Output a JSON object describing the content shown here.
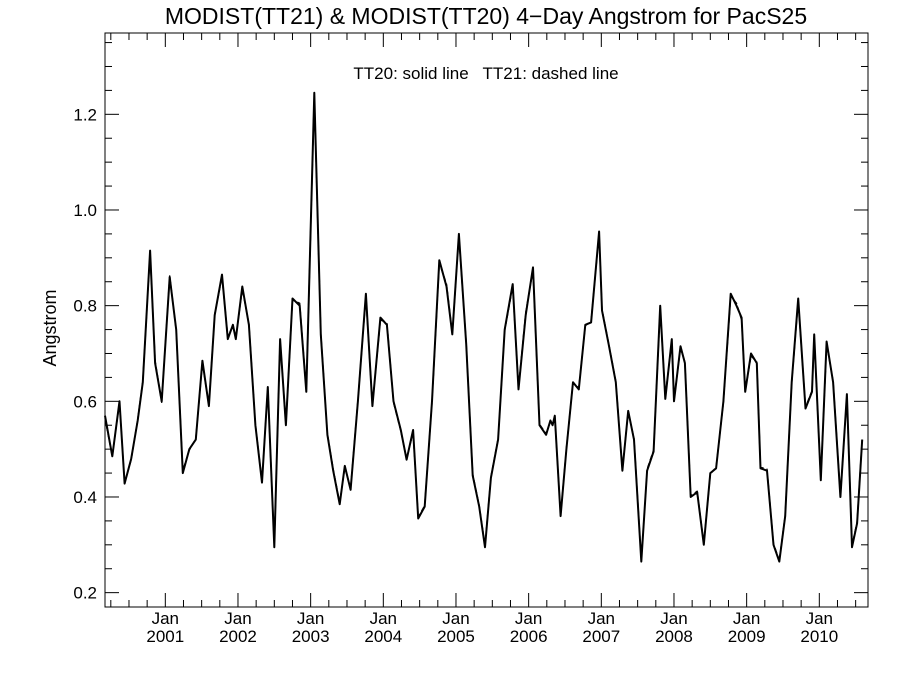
{
  "chart_data": {
    "type": "line",
    "title": "MODIST(TT21) & MODIST(TT20) 4−Day Angstrom for PacS25",
    "ylabel": "Angstrom",
    "xlabel": "",
    "annotation": "TT20: solid line   TT21: dashed line",
    "ylim": [
      0.17,
      1.37
    ],
    "xlim": [
      2000.17,
      2010.67
    ],
    "yticks": [
      0.2,
      0.4,
      0.6,
      0.8,
      1.0,
      1.2
    ],
    "ytick_labels": [
      "0.2",
      "0.4",
      "0.6",
      "0.8",
      "1.0",
      "1.2"
    ],
    "xticks": [
      {
        "x": 2001.0,
        "month": "Jan",
        "year": "2001"
      },
      {
        "x": 2002.0,
        "month": "Jan",
        "year": "2002"
      },
      {
        "x": 2003.0,
        "month": "Jan",
        "year": "2003"
      },
      {
        "x": 2004.0,
        "month": "Jan",
        "year": "2004"
      },
      {
        "x": 2005.0,
        "month": "Jan",
        "year": "2005"
      },
      {
        "x": 2006.0,
        "month": "Jan",
        "year": "2006"
      },
      {
        "x": 2007.0,
        "month": "Jan",
        "year": "2007"
      },
      {
        "x": 2008.0,
        "month": "Jan",
        "year": "2008"
      },
      {
        "x": 2009.0,
        "month": "Jan",
        "year": "2009"
      },
      {
        "x": 2010.0,
        "month": "Jan",
        "year": "2010"
      }
    ],
    "grid": false,
    "series": [
      {
        "name": "TT20",
        "style": "solid",
        "color": "#000000",
        "points": [
          [
            2000.17,
            0.57
          ],
          [
            2000.27,
            0.485
          ],
          [
            2000.37,
            0.6
          ],
          [
            2000.44,
            0.428
          ],
          [
            2000.53,
            0.48
          ],
          [
            2000.62,
            0.56
          ],
          [
            2000.69,
            0.64
          ],
          [
            2000.79,
            0.915
          ],
          [
            2000.86,
            0.68
          ],
          [
            2000.95,
            0.6
          ],
          [
            2001.06,
            0.86
          ],
          [
            2001.15,
            0.75
          ],
          [
            2001.24,
            0.45
          ],
          [
            2001.33,
            0.5
          ],
          [
            2001.42,
            0.52
          ],
          [
            2001.51,
            0.685
          ],
          [
            2001.6,
            0.59
          ],
          [
            2001.68,
            0.78
          ],
          [
            2001.78,
            0.865
          ],
          [
            2001.86,
            0.73
          ],
          [
            2001.93,
            0.76
          ],
          [
            2001.97,
            0.73
          ],
          [
            2002.06,
            0.84
          ],
          [
            2002.15,
            0.76
          ],
          [
            2002.24,
            0.55
          ],
          [
            2002.33,
            0.43
          ],
          [
            2002.41,
            0.63
          ],
          [
            2002.5,
            0.295
          ],
          [
            2002.58,
            0.73
          ],
          [
            2002.66,
            0.55
          ],
          [
            2002.75,
            0.815
          ],
          [
            2002.85,
            0.8
          ],
          [
            2002.94,
            0.62
          ],
          [
            2003.05,
            1.245
          ],
          [
            2003.14,
            0.74
          ],
          [
            2003.23,
            0.53
          ],
          [
            2003.31,
            0.455
          ],
          [
            2003.4,
            0.385
          ],
          [
            2003.47,
            0.465
          ],
          [
            2003.55,
            0.415
          ],
          [
            2003.65,
            0.6
          ],
          [
            2003.76,
            0.825
          ],
          [
            2003.85,
            0.59
          ],
          [
            2003.96,
            0.775
          ],
          [
            2004.05,
            0.76
          ],
          [
            2004.14,
            0.6
          ],
          [
            2004.24,
            0.54
          ],
          [
            2004.32,
            0.478
          ],
          [
            2004.41,
            0.54
          ],
          [
            2004.48,
            0.355
          ],
          [
            2004.57,
            0.38
          ],
          [
            2004.67,
            0.6
          ],
          [
            2004.77,
            0.895
          ],
          [
            2004.87,
            0.84
          ],
          [
            2004.95,
            0.74
          ],
          [
            2005.04,
            0.95
          ],
          [
            2005.14,
            0.72
          ],
          [
            2005.23,
            0.445
          ],
          [
            2005.32,
            0.38
          ],
          [
            2005.4,
            0.295
          ],
          [
            2005.48,
            0.44
          ],
          [
            2005.58,
            0.52
          ],
          [
            2005.67,
            0.75
          ],
          [
            2005.78,
            0.845
          ],
          [
            2005.86,
            0.625
          ],
          [
            2005.96,
            0.78
          ],
          [
            2006.06,
            0.88
          ],
          [
            2006.15,
            0.55
          ],
          [
            2006.24,
            0.53
          ],
          [
            2006.3,
            0.56
          ],
          [
            2006.33,
            0.55
          ],
          [
            2006.36,
            0.57
          ],
          [
            2006.44,
            0.36
          ],
          [
            2006.52,
            0.5
          ],
          [
            2006.61,
            0.64
          ],
          [
            2006.69,
            0.625
          ],
          [
            2006.78,
            0.76
          ],
          [
            2006.86,
            0.765
          ],
          [
            2006.97,
            0.955
          ],
          [
            2007.01,
            0.79
          ],
          [
            2007.1,
            0.72
          ],
          [
            2007.2,
            0.64
          ],
          [
            2007.29,
            0.455
          ],
          [
            2007.37,
            0.58
          ],
          [
            2007.45,
            0.52
          ],
          [
            2007.55,
            0.265
          ],
          [
            2007.63,
            0.455
          ],
          [
            2007.72,
            0.495
          ],
          [
            2007.81,
            0.8
          ],
          [
            2007.88,
            0.605
          ],
          [
            2007.97,
            0.73
          ],
          [
            2008.0,
            0.6
          ],
          [
            2008.09,
            0.715
          ],
          [
            2008.15,
            0.68
          ],
          [
            2008.23,
            0.4
          ],
          [
            2008.32,
            0.41
          ],
          [
            2008.41,
            0.3
          ],
          [
            2008.5,
            0.45
          ],
          [
            2008.58,
            0.46
          ],
          [
            2008.68,
            0.6
          ],
          [
            2008.78,
            0.825
          ],
          [
            2008.86,
            0.8
          ],
          [
            2008.93,
            0.775
          ],
          [
            2008.98,
            0.62
          ],
          [
            2009.06,
            0.7
          ],
          [
            2009.14,
            0.68
          ],
          [
            2009.19,
            0.46
          ],
          [
            2009.28,
            0.455
          ],
          [
            2009.37,
            0.3
          ],
          [
            2009.45,
            0.265
          ],
          [
            2009.53,
            0.36
          ],
          [
            2009.62,
            0.64
          ],
          [
            2009.71,
            0.815
          ],
          [
            2009.81,
            0.585
          ],
          [
            2009.9,
            0.62
          ],
          [
            2009.93,
            0.74
          ],
          [
            2010.02,
            0.435
          ],
          [
            2010.1,
            0.725
          ],
          [
            2010.19,
            0.64
          ],
          [
            2010.29,
            0.4
          ],
          [
            2010.38,
            0.615
          ],
          [
            2010.45,
            0.295
          ],
          [
            2010.52,
            0.345
          ],
          [
            2010.59,
            0.52
          ]
        ]
      },
      {
        "name": "TT21",
        "style": "dashed",
        "color": "#000000",
        "points": [
          [
            2000.17,
            0.565
          ],
          [
            2000.27,
            0.485
          ],
          [
            2000.37,
            0.598
          ],
          [
            2000.44,
            0.43
          ],
          [
            2000.53,
            0.478
          ],
          [
            2000.62,
            0.562
          ],
          [
            2000.69,
            0.642
          ],
          [
            2000.79,
            0.91
          ],
          [
            2000.86,
            0.685
          ],
          [
            2000.95,
            0.598
          ],
          [
            2001.06,
            0.862
          ],
          [
            2001.15,
            0.748
          ],
          [
            2001.24,
            0.455
          ],
          [
            2001.33,
            0.498
          ],
          [
            2001.42,
            0.522
          ],
          [
            2001.51,
            0.68
          ],
          [
            2001.6,
            0.592
          ],
          [
            2001.68,
            0.782
          ],
          [
            2001.78,
            0.86
          ],
          [
            2001.86,
            0.735
          ],
          [
            2001.93,
            0.758
          ],
          [
            2001.97,
            0.732
          ],
          [
            2002.06,
            0.835
          ],
          [
            2002.15,
            0.762
          ],
          [
            2002.24,
            0.552
          ],
          [
            2002.33,
            0.432
          ],
          [
            2002.41,
            0.628
          ],
          [
            2002.5,
            0.298
          ],
          [
            2002.58,
            0.728
          ],
          [
            2002.66,
            0.552
          ],
          [
            2002.75,
            0.812
          ],
          [
            2002.85,
            0.805
          ],
          [
            2002.94,
            0.622
          ],
          [
            2003.05,
            1.24
          ],
          [
            2003.14,
            0.742
          ],
          [
            2003.23,
            0.532
          ],
          [
            2003.31,
            0.458
          ],
          [
            2003.4,
            0.388
          ],
          [
            2003.47,
            0.462
          ],
          [
            2003.55,
            0.418
          ],
          [
            2003.65,
            0.602
          ],
          [
            2003.76,
            0.82
          ],
          [
            2003.85,
            0.592
          ],
          [
            2003.96,
            0.77
          ],
          [
            2004.05,
            0.765
          ],
          [
            2004.14,
            0.598
          ],
          [
            2004.24,
            0.538
          ],
          [
            2004.32,
            0.48
          ],
          [
            2004.41,
            0.535
          ],
          [
            2004.48,
            0.358
          ],
          [
            2004.57,
            0.382
          ],
          [
            2004.67,
            0.598
          ],
          [
            2004.77,
            0.89
          ],
          [
            2004.87,
            0.845
          ],
          [
            2004.95,
            0.742
          ],
          [
            2005.04,
            0.945
          ],
          [
            2005.14,
            0.722
          ],
          [
            2005.23,
            0.448
          ],
          [
            2005.32,
            0.382
          ],
          [
            2005.4,
            0.298
          ],
          [
            2005.48,
            0.442
          ],
          [
            2005.58,
            0.522
          ],
          [
            2005.67,
            0.748
          ],
          [
            2005.78,
            0.84
          ],
          [
            2005.86,
            0.628
          ],
          [
            2005.96,
            0.785
          ],
          [
            2006.06,
            0.875
          ],
          [
            2006.15,
            0.552
          ],
          [
            2006.24,
            0.532
          ],
          [
            2006.3,
            0.558
          ],
          [
            2006.33,
            0.552
          ],
          [
            2006.36,
            0.568
          ],
          [
            2006.44,
            0.362
          ],
          [
            2006.52,
            0.502
          ],
          [
            2006.61,
            0.638
          ],
          [
            2006.69,
            0.628
          ],
          [
            2006.78,
            0.758
          ],
          [
            2006.86,
            0.768
          ],
          [
            2006.97,
            0.95
          ],
          [
            2007.01,
            0.792
          ],
          [
            2007.1,
            0.722
          ],
          [
            2007.2,
            0.642
          ],
          [
            2007.29,
            0.458
          ],
          [
            2007.37,
            0.578
          ],
          [
            2007.45,
            0.522
          ],
          [
            2007.55,
            0.268
          ],
          [
            2007.63,
            0.458
          ],
          [
            2007.72,
            0.498
          ],
          [
            2007.81,
            0.795
          ],
          [
            2007.88,
            0.608
          ],
          [
            2007.97,
            0.728
          ],
          [
            2008.0,
            0.602
          ],
          [
            2008.09,
            0.712
          ],
          [
            2008.15,
            0.682
          ],
          [
            2008.23,
            0.402
          ],
          [
            2008.32,
            0.412
          ],
          [
            2008.41,
            0.302
          ],
          [
            2008.5,
            0.448
          ],
          [
            2008.58,
            0.462
          ],
          [
            2008.68,
            0.598
          ],
          [
            2008.78,
            0.82
          ],
          [
            2008.86,
            0.805
          ],
          [
            2008.93,
            0.77
          ],
          [
            2008.98,
            0.622
          ],
          [
            2009.06,
            0.695
          ],
          [
            2009.14,
            0.682
          ],
          [
            2009.19,
            0.462
          ],
          [
            2009.28,
            0.458
          ],
          [
            2009.37,
            0.302
          ],
          [
            2009.45,
            0.268
          ],
          [
            2009.53,
            0.362
          ],
          [
            2009.62,
            0.638
          ],
          [
            2009.71,
            0.81
          ],
          [
            2009.81,
            0.588
          ],
          [
            2009.9,
            0.622
          ],
          [
            2009.93,
            0.735
          ],
          [
            2010.02,
            0.438
          ],
          [
            2010.1,
            0.72
          ],
          [
            2010.19,
            0.642
          ],
          [
            2010.29,
            0.402
          ],
          [
            2010.38,
            0.61
          ],
          [
            2010.45,
            0.298
          ],
          [
            2010.52,
            0.348
          ],
          [
            2010.59,
            0.522
          ]
        ]
      }
    ]
  }
}
